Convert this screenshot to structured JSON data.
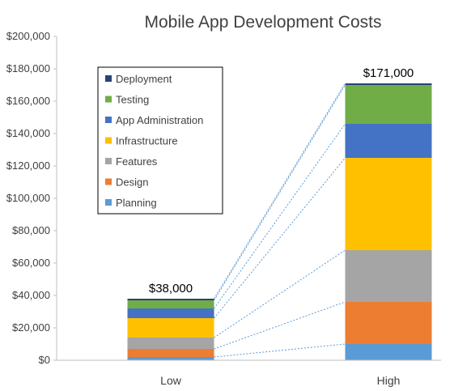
{
  "chart_data": {
    "type": "bar",
    "stacked": true,
    "title": "Mobile App Development Costs",
    "categories": [
      "Low",
      "High"
    ],
    "series": [
      {
        "name": "Planning",
        "values": [
          2000,
          10000
        ],
        "color": "#5B9BD5"
      },
      {
        "name": "Design",
        "values": [
          5000,
          26000
        ],
        "color": "#ED7D31"
      },
      {
        "name": "Features",
        "values": [
          7000,
          32000
        ],
        "color": "#A5A5A5"
      },
      {
        "name": "Infrastructure",
        "values": [
          12000,
          57000
        ],
        "color": "#FFC000"
      },
      {
        "name": "App Administration",
        "values": [
          6000,
          21000
        ],
        "color": "#4472C4"
      },
      {
        "name": "Testing",
        "values": [
          5000,
          24000
        ],
        "color": "#70AD47"
      },
      {
        "name": "Deployment",
        "values": [
          1000,
          1000
        ],
        "color": "#264478"
      }
    ],
    "totals": [
      "$38,000",
      "$171,000"
    ],
    "ylim": [
      0,
      200000
    ],
    "yticks": [
      "$0",
      "$20,000",
      "$40,000",
      "$60,000",
      "$80,000",
      "$100,000",
      "$120,000",
      "$140,000",
      "$160,000",
      "$180,000",
      "$200,000"
    ],
    "grid": false,
    "legend_position": "upper-left",
    "legend_order": [
      "Deployment",
      "Testing",
      "App Administration",
      "Infrastructure",
      "Features",
      "Design",
      "Planning"
    ],
    "connector_lines": true,
    "connector_color": "#5B9BD5"
  }
}
